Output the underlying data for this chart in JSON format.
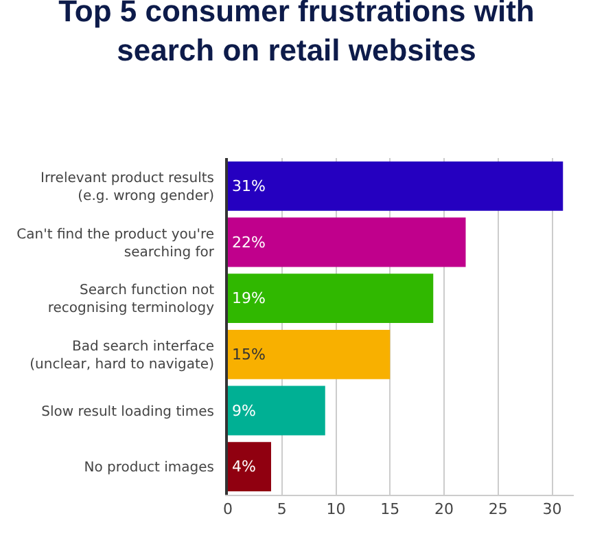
{
  "chart_data": {
    "type": "bar",
    "orientation": "horizontal",
    "title": "Top 5 consumer frustrations with\nsearch on retail websites",
    "categories": [
      "Irrelevant product results\n(e.g. wrong gender)",
      "Can't find the product you're\nsearching for",
      "Search function not\nrecognising terminology",
      "Bad search interface\n(unclear, hard to navigate)",
      "Slow result loading times",
      "No product images"
    ],
    "values": [
      31,
      22,
      19,
      15,
      9,
      4
    ],
    "colors": [
      "#2500c0",
      "#c0008c",
      "#30b800",
      "#f8b000",
      "#00b094",
      "#900010"
    ],
    "value_labels": [
      "31%",
      "22%",
      "19%",
      "15%",
      "9%",
      "4%"
    ],
    "xlim": [
      0,
      32
    ],
    "xticks": [
      0,
      5,
      10,
      15,
      20,
      25,
      30
    ],
    "grid": "x"
  }
}
